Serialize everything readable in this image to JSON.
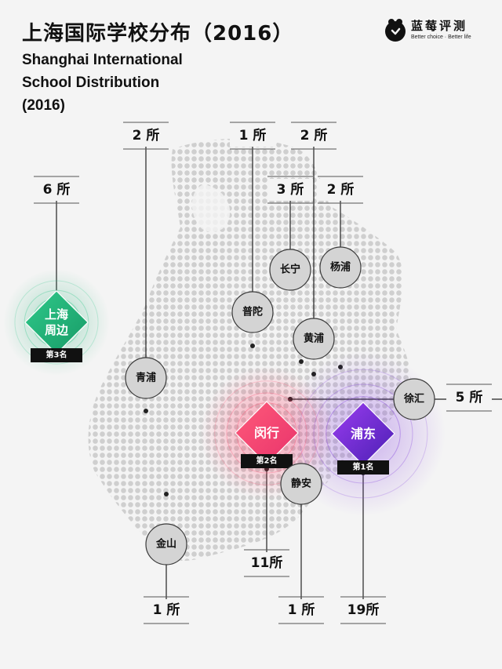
{
  "title": {
    "cn": "上海国际学校分布（2016）",
    "en_line1": "Shanghai International",
    "en_line2": "School Distribution",
    "en_line3": "(2016)"
  },
  "brand": {
    "name": "蓝莓评测",
    "slogan": "Better choice · Better life"
  },
  "unit": "所",
  "colors": {
    "background": "#f4f4f4",
    "text": "#111111",
    "line": "#222222",
    "node_fill": "#d4d4d4",
    "rank1": "#6a22c4",
    "rank2": "#e8336b",
    "rank3": "#1fae74"
  },
  "chart_data": {
    "type": "map",
    "title": "上海国际学校分布（2016）",
    "subtitle": "Shanghai International School Distribution (2016)",
    "unit": "所",
    "districts": [
      {
        "name": "浦东",
        "count": 19,
        "count_label": "19所",
        "rank_label": "第1名"
      },
      {
        "name": "闵行",
        "count": 11,
        "count_label": "11所",
        "rank_label": "第2名"
      },
      {
        "name": "上海周边",
        "count": 6,
        "count_label": "6 所",
        "rank_label": "第3名"
      },
      {
        "name": "徐汇",
        "count": 5,
        "count_label": "5 所"
      },
      {
        "name": "长宁",
        "count": 3,
        "count_label": "3 所"
      },
      {
        "name": "青浦",
        "count": 2,
        "count_label": "2 所"
      },
      {
        "name": "黄浦",
        "count": 2,
        "count_label": "2 所"
      },
      {
        "name": "杨浦",
        "count": 2,
        "count_label": "2 所"
      },
      {
        "name": "普陀",
        "count": 1,
        "count_label": "1 所"
      },
      {
        "name": "金山",
        "count": 1,
        "count_label": "1 所"
      },
      {
        "name": "静安",
        "count": 1,
        "count_label": "1 所"
      }
    ]
  }
}
